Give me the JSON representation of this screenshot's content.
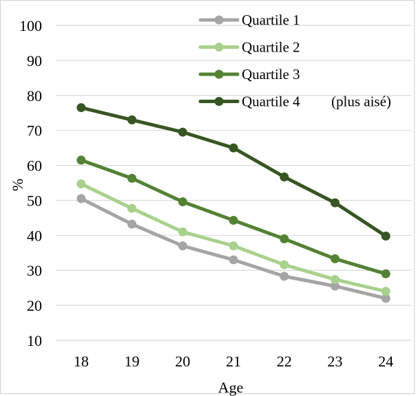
{
  "chart_data": {
    "type": "line",
    "x": [
      "18",
      "19",
      "20",
      "21",
      "22",
      "23",
      "24"
    ],
    "xlabel": "Age",
    "ylabel": "%",
    "ylim": [
      10,
      100
    ],
    "yticks": [
      10,
      20,
      30,
      40,
      50,
      60,
      70,
      80,
      90,
      100
    ],
    "grid": true,
    "legend_position": "top-right",
    "series": [
      {
        "name": "Quartile 1",
        "color": "#a5a5a5",
        "values": [
          50.5,
          43.2,
          37.0,
          33.0,
          28.3,
          25.5,
          22.0
        ]
      },
      {
        "name": "Quartile 2",
        "color": "#a9d18e",
        "values": [
          54.7,
          47.7,
          41.0,
          37.0,
          31.6,
          27.4,
          24.0
        ]
      },
      {
        "name": "Quartile 3",
        "color": "#548235",
        "values": [
          61.5,
          56.3,
          49.6,
          44.3,
          39.0,
          33.3,
          29.0
        ]
      },
      {
        "name": "Quartile 4",
        "color": "#375623",
        "values": [
          76.5,
          73.0,
          69.5,
          65.0,
          56.7,
          49.3,
          39.8
        ]
      }
    ],
    "legend_note": "(plus aisé)"
  }
}
